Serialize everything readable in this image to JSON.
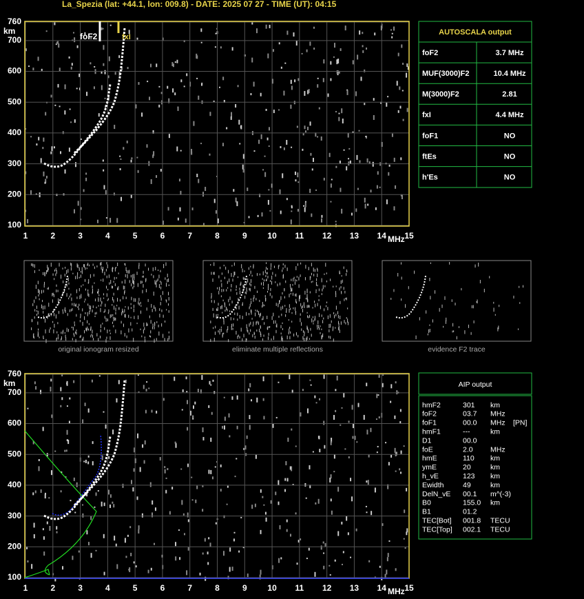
{
  "header": {
    "title": "La_Spezia (lat: +44.1, lon: 009.8) - DATE: 2025 07 27 - TIME (UT): 04:15"
  },
  "ionogram": {
    "x_unit": "MHz",
    "y_unit": "km",
    "xlim": [
      1,
      15
    ],
    "ylim": [
      100,
      760
    ],
    "xticks": [
      1,
      2,
      3,
      4,
      5,
      6,
      7,
      8,
      9,
      10,
      11,
      12,
      13,
      14,
      15
    ],
    "yticks": [
      100,
      200,
      300,
      400,
      500,
      600,
      700,
      760
    ],
    "foF2_label": "foF2",
    "fxI_label": "fxI"
  },
  "autoscala": {
    "title": "AUTOSCALA output",
    "rows": [
      [
        "foF2",
        "3.7 MHz"
      ],
      [
        "MUF(3000)F2",
        "10.4 MHz"
      ],
      [
        "M(3000)F2",
        "2.81"
      ],
      [
        "fxI",
        "4.4 MHz"
      ],
      [
        "foF1",
        "NO"
      ],
      [
        "ftEs",
        "NO"
      ],
      [
        "h'Es",
        "NO"
      ]
    ],
    "colors": [
      "#ffffff",
      "#ffffff",
      "#ffffff",
      "#e8d44a",
      "#ff2020",
      "#3399ff",
      "#ffffff"
    ]
  },
  "panels": [
    "original ionogram resized",
    "eliminate multiple reflections",
    "evidence F2 trace"
  ],
  "aip": {
    "title": "AIP output",
    "rows": [
      [
        "hmF2",
        "301",
        "km"
      ],
      [
        "foF2",
        "03.7",
        "MHz"
      ],
      [
        "foF1",
        "00.0",
        "MHz",
        "[PN]"
      ],
      [
        "hmF1",
        "---",
        "km"
      ],
      [
        "D1",
        "00.0"
      ],
      [
        "foE",
        "2.0",
        "MHz"
      ],
      [
        "hmE",
        "110",
        "km"
      ],
      [
        "ymE",
        "20",
        "km"
      ],
      [
        "h_vE",
        "123",
        "km"
      ],
      [
        "Ewidth",
        "49",
        "km"
      ],
      [
        "DelN_vE",
        "00.1",
        "m^(-3)"
      ],
      [
        "B0",
        "155.0",
        "km"
      ],
      [
        "B1",
        "01.2"
      ],
      [
        "TEC[Bot]",
        "001.8",
        "TECU"
      ],
      [
        "TEC[Top]",
        "002.1",
        "TECU"
      ]
    ]
  }
}
